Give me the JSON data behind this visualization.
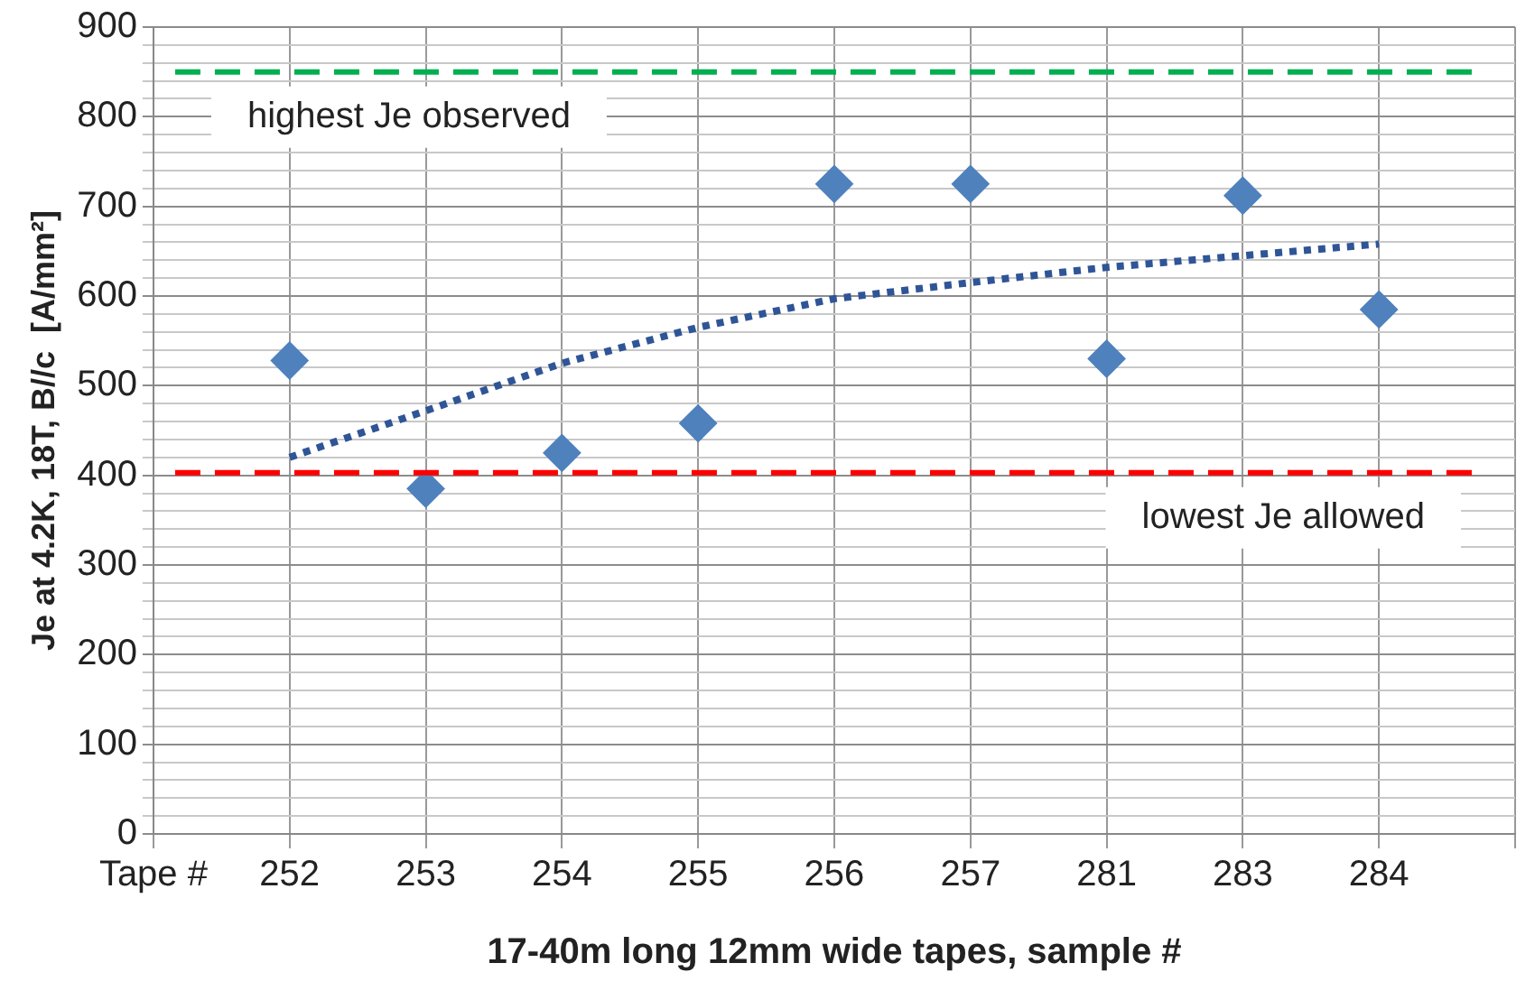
{
  "chart_data": {
    "type": "scatter",
    "xlabel": "17-40m long 12mm wide tapes, sample #",
    "ylabel": "Je at 4.2K, 18T, B//c  [A/mm²]",
    "categories": [
      "Tape #",
      "252",
      "253",
      "254",
      "255",
      "256",
      "257",
      "281",
      "283",
      "284",
      null
    ],
    "series": [
      {
        "color": "#4f81bd",
        "marker": "diamond",
        "values": [
          null,
          528,
          385,
          425,
          458,
          725,
          725,
          530,
          712,
          585,
          null
        ]
      },
      {
        "type": "line",
        "color": "#2f5597",
        "line_style": "dotted",
        "marker": "none",
        "values": [
          null,
          420,
          472,
          525,
          565,
          597,
          615,
          632,
          645,
          658,
          null
        ]
      }
    ],
    "ylim": [
      0,
      900
    ],
    "yticks": [
      0,
      {
        "value": 20,
        "label": null
      },
      {
        "value": 40,
        "label": null
      },
      {
        "value": 60,
        "label": null
      },
      {
        "value": 80,
        "label": null
      },
      100,
      {
        "value": 120,
        "label": null
      },
      {
        "value": 140,
        "label": null
      },
      {
        "value": 160,
        "label": null
      },
      {
        "value": 180,
        "label": null
      },
      200,
      {
        "value": 220,
        "label": null
      },
      {
        "value": 240,
        "label": null
      },
      {
        "value": 260,
        "label": null
      },
      {
        "value": 280,
        "label": null
      },
      300,
      {
        "value": 320,
        "label": null
      },
      {
        "value": 340,
        "label": null
      },
      {
        "value": 360,
        "label": null
      },
      {
        "value": 380,
        "label": null
      },
      400,
      {
        "value": 420,
        "label": null
      },
      {
        "value": 440,
        "label": null
      },
      {
        "value": 460,
        "label": null
      },
      {
        "value": 480,
        "label": null
      },
      500,
      {
        "value": 520,
        "label": null
      },
      {
        "value": 540,
        "label": null
      },
      {
        "value": 560,
        "label": null
      },
      {
        "value": 580,
        "label": null
      },
      600,
      {
        "value": 620,
        "label": null
      },
      {
        "value": 640,
        "label": null
      },
      {
        "value": 660,
        "label": null
      },
      {
        "value": 680,
        "label": null
      },
      700,
      {
        "value": 720,
        "label": null
      },
      {
        "value": 740,
        "label": null
      },
      {
        "value": 760,
        "label": null
      },
      {
        "value": 780,
        "label": null
      },
      800,
      {
        "value": 820,
        "label": null
      },
      {
        "value": 840,
        "label": null
      },
      {
        "value": 860,
        "label": null
      },
      {
        "value": 880,
        "label": null
      },
      900
    ],
    "ref_lines": [
      {
        "axis": "y",
        "value": 850,
        "label": "highest Je observed",
        "color": "#00b050",
        "line_style": "dashed"
      },
      {
        "axis": "y",
        "value": 403,
        "label": "lowest Je allowed",
        "color": "#ff0000",
        "line_style": "dashed"
      }
    ],
    "grid": true,
    "legend": false
  }
}
